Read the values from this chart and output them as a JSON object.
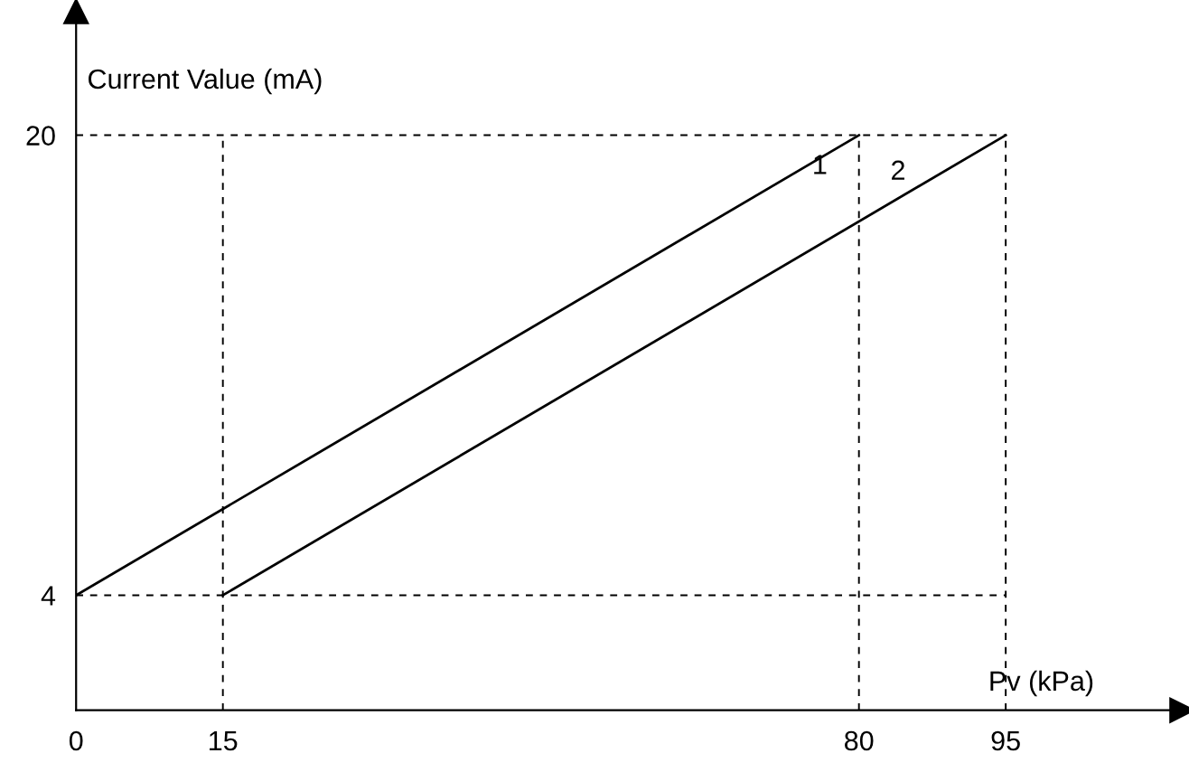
{
  "chart_data": {
    "type": "line",
    "xlabel": "Pv (kPa)",
    "ylabel": "Current Value (mA)",
    "series": [
      {
        "name": "1",
        "color": "#000000",
        "x": [
          0,
          80
        ],
        "values": [
          4,
          20
        ]
      },
      {
        "name": "2",
        "color": "#000000",
        "x": [
          15,
          95
        ],
        "values": [
          4,
          20
        ]
      }
    ],
    "xlim": [
      0,
      113
    ],
    "ylim": [
      0,
      24.3
    ],
    "xticks": [
      0,
      15,
      80,
      95
    ],
    "yticks": [
      4,
      20
    ],
    "ref_lines": [
      {
        "axis": "y",
        "value": 20,
        "color": "#000000",
        "line_style": "dashed"
      },
      {
        "axis": "y",
        "value": 4,
        "color": "#000000",
        "line_style": "dashed"
      },
      {
        "axis": "x",
        "value": 15,
        "color": "#000000",
        "line_style": "dashed"
      },
      {
        "axis": "x",
        "value": 80,
        "color": "#000000",
        "line_style": "dashed"
      },
      {
        "axis": "x",
        "value": 95,
        "color": "#000000",
        "line_style": "dashed"
      }
    ],
    "grid": false,
    "legend": false,
    "marker": "none",
    "line_style": "solid"
  }
}
